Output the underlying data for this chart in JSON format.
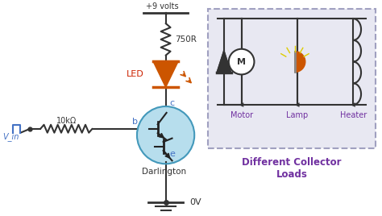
{
  "bg_color": "#ffffff",
  "wire_color": "#333333",
  "blue_color": "#4472c4",
  "purple_color": "#7030a0",
  "orange_color": "#cc5500",
  "dashed_box_color": "#a0a0c0",
  "dashed_box_fill": "#e8e8f2",
  "label_vin": "V_in",
  "label_10k": "10kΩ",
  "label_750R": "750R",
  "label_9v": "+9 volts",
  "label_0v": "0V",
  "label_LED": "LED",
  "label_b": "b",
  "label_c": "c",
  "label_e": "e",
  "label_darlington": "Darlington",
  "label_motor": "Motor",
  "label_lamp": "Lamp",
  "label_heater": "Heater",
  "label_diff": "Different Collector\nLoads"
}
